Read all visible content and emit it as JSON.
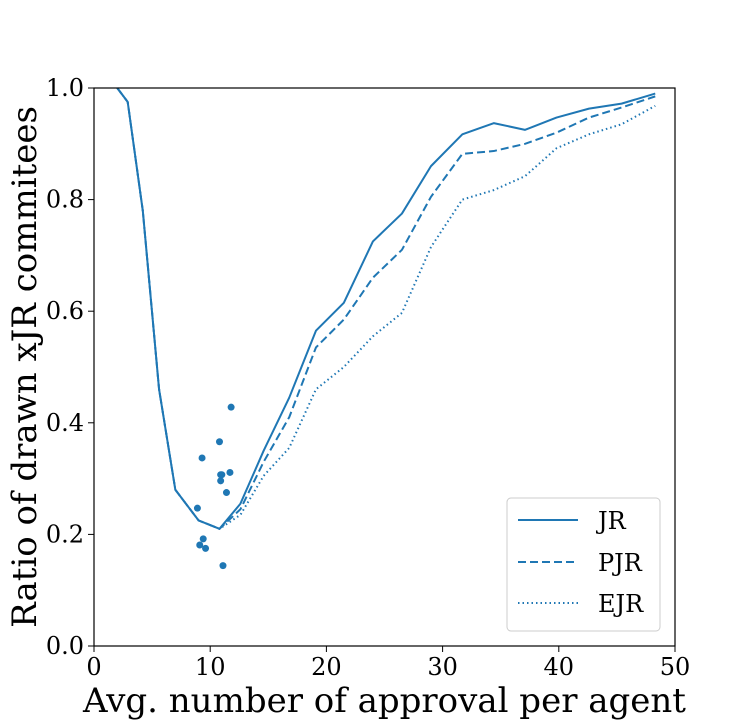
{
  "chart_data": {
    "type": "line",
    "title": "",
    "xlabel": "Avg. number of approval per agent",
    "ylabel": "Ratio of drawn xJR commitees",
    "xlim": [
      0,
      50
    ],
    "ylim": [
      0,
      1.0
    ],
    "x_ticks": [
      "0",
      "10",
      "20",
      "30",
      "40",
      "50"
    ],
    "y_ticks": [
      "0.0",
      "0.2",
      "0.4",
      "0.6",
      "0.8",
      "1.0"
    ],
    "grid": false,
    "legend_position": "bottom-right",
    "color": "#1f77b4",
    "series": [
      {
        "name": "JR",
        "style": "solid",
        "x": [
          2.0,
          2.9,
          4.2,
          5.6,
          7.0,
          9.0,
          10.8,
          12.6,
          14.6,
          16.8,
          19.1,
          21.5,
          24.0,
          26.5,
          29.0,
          31.7,
          34.4,
          37.1,
          39.8,
          42.6,
          45.4,
          48.3
        ],
        "y": [
          1.0,
          0.975,
          0.78,
          0.46,
          0.28,
          0.225,
          0.21,
          0.255,
          0.35,
          0.445,
          0.565,
          0.615,
          0.725,
          0.775,
          0.86,
          0.917,
          0.937,
          0.925,
          0.947,
          0.963,
          0.972,
          0.99
        ]
      },
      {
        "name": "PJR",
        "style": "dashed",
        "x": [
          2.0,
          2.9,
          4.2,
          5.6,
          7.0,
          9.0,
          10.8,
          12.6,
          14.6,
          16.8,
          19.1,
          21.5,
          24.0,
          26.5,
          29.0,
          31.7,
          34.4,
          37.1,
          39.8,
          42.6,
          45.4,
          48.3
        ],
        "y": [
          1.0,
          0.975,
          0.78,
          0.46,
          0.28,
          0.225,
          0.21,
          0.245,
          0.33,
          0.41,
          0.535,
          0.585,
          0.66,
          0.71,
          0.805,
          0.882,
          0.887,
          0.9,
          0.92,
          0.947,
          0.965,
          0.985
        ]
      },
      {
        "name": "EJR",
        "style": "dotted",
        "x": [
          2.0,
          2.9,
          4.2,
          5.6,
          7.0,
          9.0,
          10.8,
          12.6,
          14.6,
          16.8,
          19.1,
          21.5,
          24.0,
          26.5,
          29.0,
          31.7,
          34.4,
          37.1,
          39.8,
          42.6,
          45.4,
          48.3
        ],
        "y": [
          1.0,
          0.975,
          0.78,
          0.46,
          0.28,
          0.225,
          0.21,
          0.235,
          0.305,
          0.355,
          0.46,
          0.5,
          0.555,
          0.597,
          0.715,
          0.8,
          0.817,
          0.842,
          0.892,
          0.917,
          0.935,
          0.968
        ]
      }
    ],
    "scatter": {
      "x": [
        8.9,
        9.1,
        9.3,
        9.4,
        9.6,
        10.8,
        10.9,
        11.0,
        11.1,
        11.4,
        11.7,
        11.8,
        10.9
      ],
      "y": [
        0.247,
        0.181,
        0.337,
        0.192,
        0.175,
        0.366,
        0.296,
        0.307,
        0.144,
        0.275,
        0.311,
        0.428,
        0.307
      ]
    }
  }
}
